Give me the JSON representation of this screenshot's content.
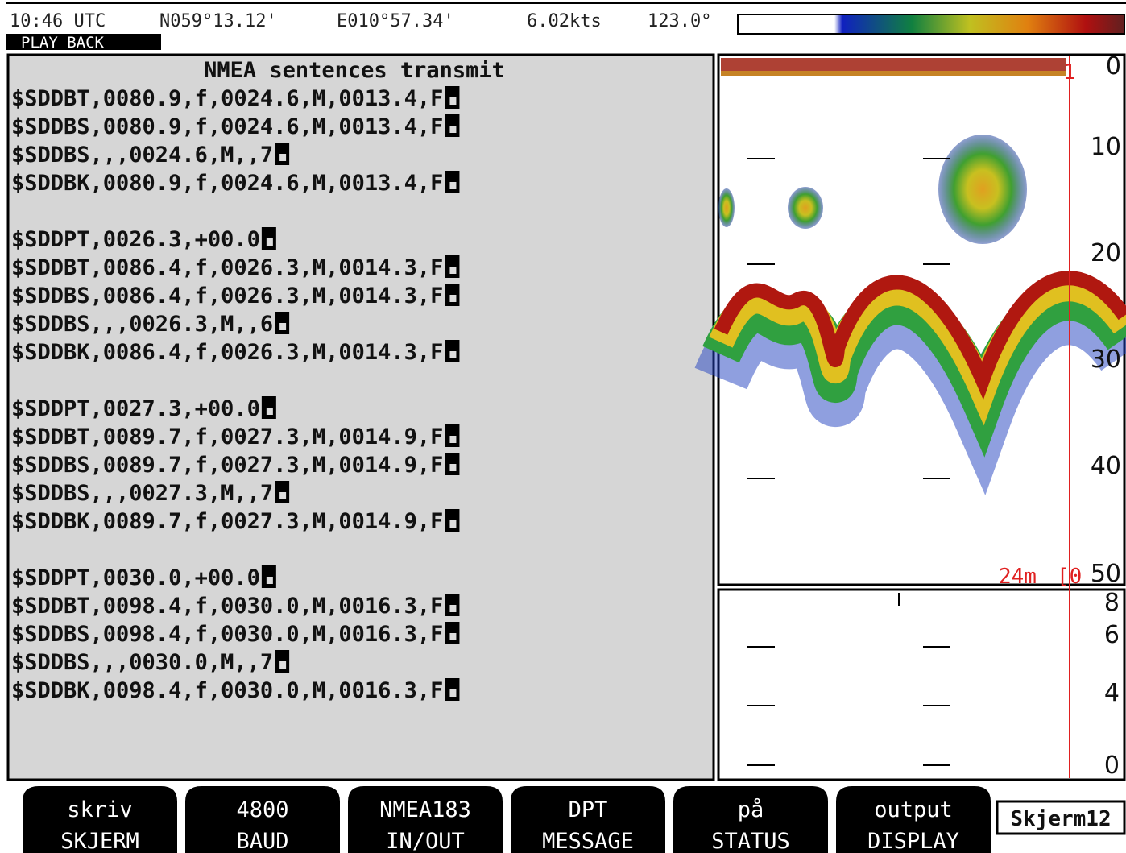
{
  "status": {
    "time": "10:46 UTC",
    "latitude": "N059°13.12'",
    "longitude": "E010°57.34'",
    "speed": "6.02kts",
    "heading": "123.0°",
    "mode": "PLAY BACK"
  },
  "nmea": {
    "title": "NMEA sentences transmit",
    "groups": [
      [
        "$SDDBT,0080.9,f,0024.6,M,0013.4,F",
        "$SDDBS,0080.9,f,0024.6,M,0013.4,F",
        "$SDDBS,,,0024.6,M,,7",
        "$SDDBK,0080.9,f,0024.6,M,0013.4,F"
      ],
      [
        "$SDDPT,0026.3,+00.0",
        "$SDDBT,0086.4,f,0026.3,M,0014.3,F",
        "$SDDBS,0086.4,f,0026.3,M,0014.3,F",
        "$SDDBS,,,0026.3,M,,6",
        "$SDDBK,0086.4,f,0026.3,M,0014.3,F"
      ],
      [
        "$SDDPT,0027.3,+00.0",
        "$SDDBT,0089.7,f,0027.3,M,0014.9,F",
        "$SDDBS,0089.7,f,0027.3,M,0014.9,F",
        "$SDDBS,,,0027.3,M,,7",
        "$SDDBK,0089.7,f,0027.3,M,0014.9,F"
      ],
      [
        "$SDDPT,0030.0,+00.0",
        "$SDDBT,0098.4,f,0030.0,M,0016.3,F",
        "$SDDBS,0098.4,f,0030.0,M,0016.3,F",
        "$SDDBS,,,0030.0,M,,7",
        "$SDDBK,0098.4,f,0030.0,M,0016.3,F"
      ]
    ]
  },
  "echogram": {
    "depth_scale": [
      0,
      10,
      20,
      30,
      40,
      50
    ],
    "depth_readout": "24m",
    "range_marker": "[0",
    "marker_number": "1",
    "zoom_scale": [
      8,
      6,
      4,
      0
    ]
  },
  "buttons": [
    {
      "top": "skriv",
      "bottom": "SKJERM"
    },
    {
      "top": "4800",
      "bottom": "BAUD"
    },
    {
      "top": "NMEA183",
      "bottom": "IN/OUT"
    },
    {
      "top": "DPT",
      "bottom": "MESSAGE"
    },
    {
      "top": "på",
      "bottom": "STATUS"
    },
    {
      "top": "output",
      "bottom": "DISPLAY"
    }
  ],
  "screen_tab": "Skjerm12"
}
